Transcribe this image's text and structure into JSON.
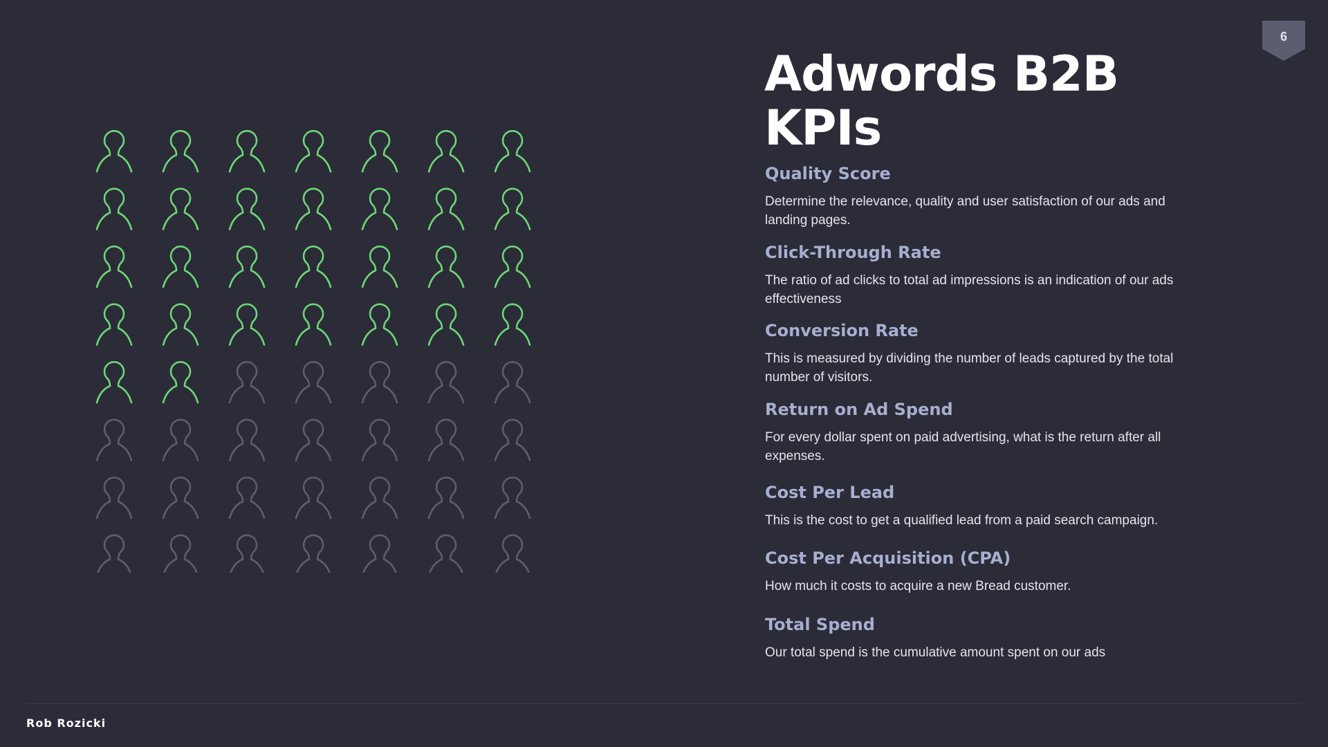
{
  "page_number": "6",
  "title": "Adwords B2B KPIs",
  "people_grid": {
    "columns": 7,
    "rows": 8,
    "highlighted_count": 30,
    "highlight_color": "#6fd67a",
    "muted_color": "#5c5e6f",
    "icon": "person-outline-icon"
  },
  "kpis": [
    {
      "title": "Quality Score",
      "description": "Determine the  relevance, quality and user satisfaction of our ads and landing pages."
    },
    {
      "title": "Click-Through Rate",
      "description": "The ratio of ad clicks to total ad impressions is an indication of our ads effectiveness"
    },
    {
      "title": "Conversion Rate",
      "description": "This is measured by dividing the number of leads captured by the total number of visitors."
    },
    {
      "title": "Return on Ad Spend",
      "description": "For every dollar spent on paid advertising, what is the return after all expenses."
    },
    {
      "title": "Cost Per Lead",
      "description": "This is the cost to get a qualified lead from a paid search campaign."
    },
    {
      "title": "Cost Per Acquisition (CPA)",
      "description": "How much it costs to acquire a new Bread customer."
    },
    {
      "title": "Total Spend",
      "description": "Our total spend is the cumulative amount spent on our ads"
    }
  ],
  "footer": {
    "author": "Rob Rozicki"
  },
  "colors": {
    "background": "#2b2c37",
    "kpi_title": "#a7aed0",
    "text": "#e4e5ec"
  }
}
